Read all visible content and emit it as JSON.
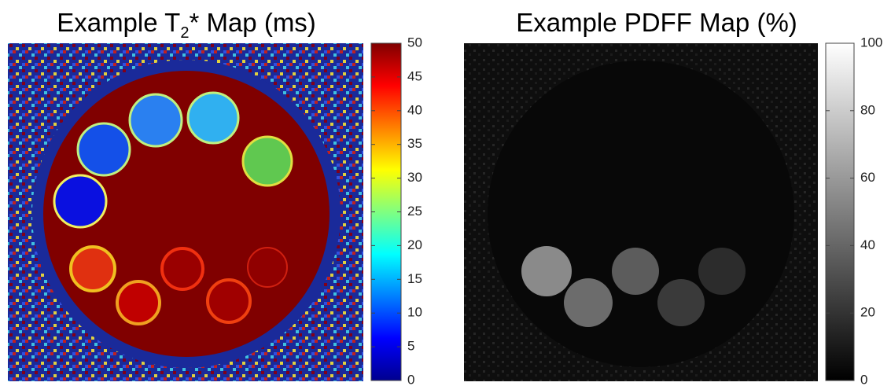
{
  "chart_data": [
    {
      "type": "image",
      "title": [
        "Example T",
        "2",
        "* Map (ms)"
      ],
      "colormap": "jet",
      "clim": [
        0,
        50
      ],
      "ticks": [
        0,
        5,
        10,
        15,
        20,
        25,
        30,
        35,
        40,
        45,
        50
      ]
    },
    {
      "type": "image",
      "title": [
        "Example PDFF Map (%)"
      ],
      "colormap": "gray",
      "clim": [
        0,
        100
      ],
      "ticks": [
        0,
        20,
        40,
        60,
        80,
        100
      ]
    }
  ]
}
